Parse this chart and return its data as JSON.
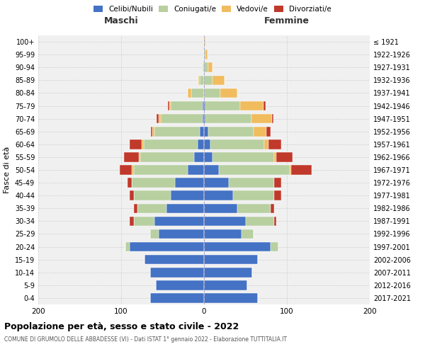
{
  "age_groups": [
    "0-4",
    "5-9",
    "10-14",
    "15-19",
    "20-24",
    "25-29",
    "30-34",
    "35-39",
    "40-44",
    "45-49",
    "50-54",
    "55-59",
    "60-64",
    "65-69",
    "70-74",
    "75-79",
    "80-84",
    "85-89",
    "90-94",
    "95-99",
    "100+"
  ],
  "birth_years": [
    "2017-2021",
    "2012-2016",
    "2007-2011",
    "2002-2006",
    "1997-2001",
    "1992-1996",
    "1987-1991",
    "1982-1986",
    "1977-1981",
    "1972-1976",
    "1967-1971",
    "1962-1966",
    "1957-1961",
    "1952-1956",
    "1947-1951",
    "1942-1946",
    "1937-1941",
    "1932-1936",
    "1927-1931",
    "1922-1926",
    "≤ 1921"
  ],
  "males": {
    "celibe": [
      65,
      58,
      65,
      72,
      90,
      55,
      60,
      45,
      40,
      35,
      20,
      12,
      8,
      5,
      2,
      2,
      0,
      0,
      0,
      0,
      0
    ],
    "coniugato": [
      0,
      0,
      0,
      0,
      5,
      10,
      25,
      35,
      45,
      52,
      65,
      65,
      65,
      55,
      50,
      38,
      15,
      5,
      2,
      0,
      0
    ],
    "vedovo": [
      0,
      0,
      0,
      0,
      0,
      0,
      0,
      0,
      0,
      0,
      2,
      2,
      2,
      2,
      3,
      2,
      5,
      2,
      0,
      0,
      0
    ],
    "divorziato": [
      0,
      0,
      0,
      0,
      0,
      0,
      5,
      5,
      5,
      5,
      15,
      18,
      15,
      2,
      2,
      2,
      0,
      0,
      0,
      0,
      0
    ]
  },
  "females": {
    "nubile": [
      65,
      52,
      58,
      65,
      80,
      45,
      50,
      40,
      35,
      30,
      18,
      10,
      8,
      5,
      2,
      2,
      0,
      0,
      0,
      0,
      0
    ],
    "coniugata": [
      0,
      0,
      0,
      0,
      10,
      15,
      35,
      40,
      50,
      55,
      85,
      75,
      65,
      55,
      55,
      42,
      20,
      10,
      5,
      2,
      0
    ],
    "vedova": [
      0,
      0,
      0,
      0,
      0,
      0,
      0,
      0,
      0,
      0,
      2,
      2,
      5,
      15,
      25,
      28,
      20,
      15,
      5,
      2,
      2
    ],
    "divorziata": [
      0,
      0,
      0,
      0,
      0,
      0,
      2,
      5,
      8,
      8,
      25,
      20,
      15,
      5,
      2,
      2,
      0,
      0,
      0,
      0,
      0
    ]
  },
  "colors": {
    "celibe": "#4472c4",
    "coniugato": "#b8cfa0",
    "vedovo": "#f0bc5e",
    "divorziato": "#c0392b"
  },
  "title": "Popolazione per età, sesso e stato civile - 2022",
  "subtitle": "COMUNE DI GRUMOLO DELLE ABBADESSE (VI) - Dati ISTAT 1° gennaio 2022 - Elaborazione TUTTITALIA.IT",
  "ylabel_left": "Fasce di età",
  "xlabel_left": "Maschi",
  "xlabel_right": "Femmine",
  "xlim": 200,
  "legend_labels": [
    "Celibi/Nubili",
    "Coniugati/e",
    "Vedovi/e",
    "Divorziati/e"
  ],
  "background_color": "#ffffff",
  "plot_bg_color": "#f0f0f0"
}
